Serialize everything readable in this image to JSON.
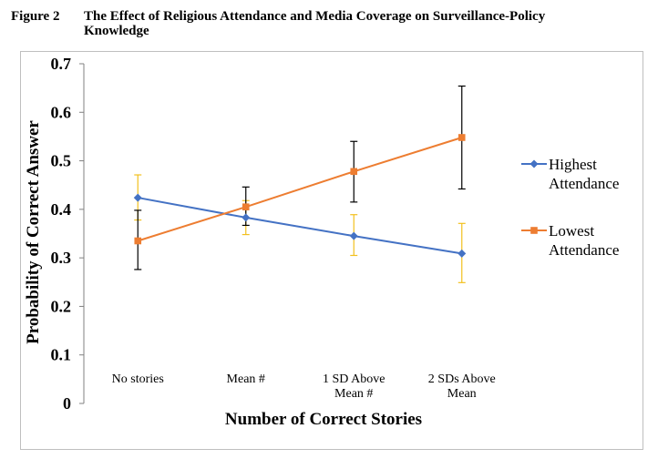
{
  "figure": {
    "number": "Figure 2",
    "title_line1": "The Effect of Religious Attendance and Media Coverage on Surveillance-Policy",
    "title_line2": "Knowledge"
  },
  "chart_data": {
    "type": "line",
    "title": "The Effect of Religious Attendance and Media Coverage on Surveillance-Policy Knowledge",
    "xlabel": "Number of Correct Stories",
    "ylabel": "Probability of Correct Answer",
    "ylim": [
      0,
      0.7
    ],
    "yticks": [
      "0",
      "0.1",
      "0.2",
      "0.3",
      "0.4",
      "0.5",
      "0.6",
      "0.7"
    ],
    "categories": [
      [
        "No stories"
      ],
      [
        "Mean #"
      ],
      [
        "1 SD Above",
        "Mean #"
      ],
      [
        "2 SDs Above",
        "Mean"
      ]
    ],
    "legend_position": "right",
    "series": [
      {
        "name": "Highest Attendance",
        "legend_lines": [
          "Highest",
          "Attendance"
        ],
        "color": "#4472C4",
        "marker": "diamond",
        "errorbar_color": "#F2C01E",
        "values": [
          0.424,
          0.383,
          0.345,
          0.309
        ],
        "lower": [
          0.378,
          0.348,
          0.305,
          0.249
        ],
        "upper": [
          0.471,
          0.418,
          0.389,
          0.371
        ]
      },
      {
        "name": "Lowest Attendance",
        "legend_lines": [
          "Lowest",
          "Attendance"
        ],
        "color": "#ED7D31",
        "marker": "square",
        "errorbar_color": "#000000",
        "values": [
          0.335,
          0.405,
          0.478,
          0.548
        ],
        "lower": [
          0.276,
          0.367,
          0.415,
          0.442
        ],
        "upper": [
          0.398,
          0.446,
          0.54,
          0.654
        ]
      }
    ]
  }
}
